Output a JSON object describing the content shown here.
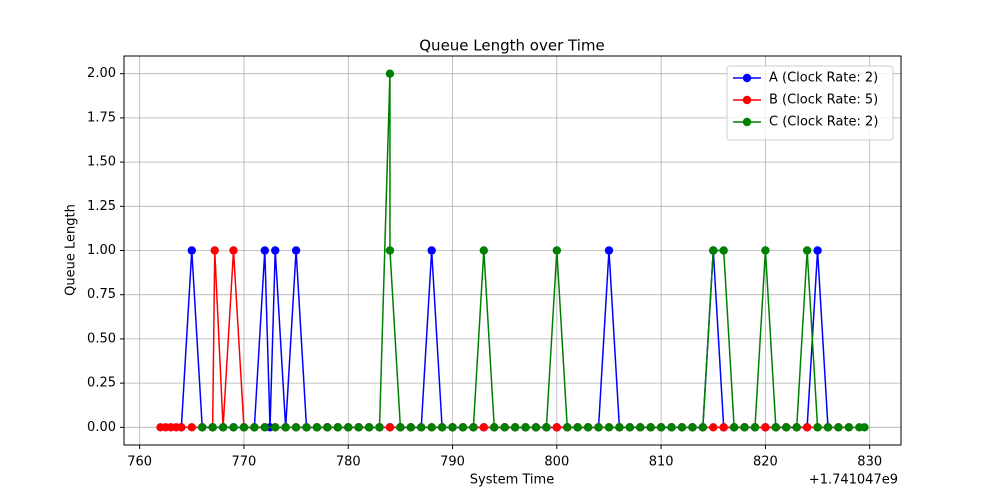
{
  "chart_data": {
    "type": "line",
    "title": "Queue Length over Time",
    "x_label": "System Time",
    "y_label": "Queue Length",
    "x_offset_label": "+1.741047e9",
    "xlim": [
      758.5,
      833
    ],
    "ylim": [
      -0.1,
      2.1
    ],
    "xticks": [
      760,
      770,
      780,
      790,
      800,
      810,
      820,
      830
    ],
    "yticks": [
      {
        "value": 0,
        "label": "0.00"
      },
      {
        "value": 0.25,
        "label": "0.25"
      },
      {
        "value": 0.5,
        "label": "0.50"
      },
      {
        "value": 0.75,
        "label": "0.75"
      },
      {
        "value": 1,
        "label": "1.00"
      },
      {
        "value": 1.25,
        "label": "1.25"
      },
      {
        "value": 1.5,
        "label": "1.50"
      },
      {
        "value": 1.75,
        "label": "1.75"
      },
      {
        "value": 2,
        "label": "2.00"
      }
    ],
    "grid": true,
    "legend": "upper right",
    "series": [
      {
        "name": "A (Clock Rate: 2)",
        "color": "#0000ff",
        "x": [
          764,
          765,
          766,
          767,
          768,
          769,
          770,
          771,
          772,
          772.5,
          773,
          774,
          775,
          776,
          777,
          778,
          779,
          780,
          781,
          782,
          783,
          784,
          785,
          786,
          787,
          788,
          789,
          790,
          791,
          792,
          793,
          794,
          795,
          796,
          797,
          798,
          799,
          800,
          801,
          802,
          803,
          804,
          805,
          806,
          807,
          808,
          809,
          810,
          811,
          812,
          813,
          814,
          815,
          816,
          817,
          818,
          819,
          820,
          821,
          822,
          823,
          824,
          825,
          826
        ],
        "values": [
          0,
          1,
          0,
          0,
          0,
          0,
          0,
          0,
          1,
          0,
          1,
          0,
          1,
          0,
          0,
          0,
          0,
          0,
          0,
          0,
          0,
          0,
          0,
          0,
          0,
          1,
          0,
          0,
          0,
          0,
          0,
          0,
          0,
          0,
          0,
          0,
          0,
          0,
          0,
          0,
          0,
          0,
          1,
          0,
          0,
          0,
          0,
          0,
          0,
          0,
          0,
          0,
          1,
          0,
          0,
          0,
          0,
          0,
          0,
          0,
          0,
          0,
          1,
          0
        ]
      },
      {
        "name": "B (Clock Rate: 5)",
        "color": "#ff0000",
        "x": [
          762,
          762.5,
          763,
          763.5,
          764,
          765,
          766,
          767,
          767.2,
          768,
          769,
          770,
          771,
          772,
          773,
          774,
          775,
          776,
          777,
          778,
          779,
          780,
          781,
          782,
          783,
          784,
          785,
          786,
          787,
          788,
          789,
          790,
          791,
          792,
          793,
          794,
          795,
          796,
          797,
          798,
          799,
          800,
          801,
          802,
          803,
          804,
          805,
          806,
          807,
          808,
          809,
          810,
          811,
          812,
          813,
          814,
          815,
          816,
          817,
          818,
          819,
          820,
          821,
          822,
          823,
          824,
          825,
          826,
          827,
          828
        ],
        "values": [
          0,
          0,
          0,
          0,
          0,
          0,
          0,
          0,
          1,
          0,
          1,
          0,
          0,
          0,
          0,
          0,
          0,
          0,
          0,
          0,
          0,
          0,
          0,
          0,
          0,
          0,
          0,
          0,
          0,
          0,
          0,
          0,
          0,
          0,
          0,
          0,
          0,
          0,
          0,
          0,
          0,
          0,
          0,
          0,
          0,
          0,
          0,
          0,
          0,
          0,
          0,
          0,
          0,
          0,
          0,
          0,
          0,
          0,
          0,
          0,
          0,
          0,
          0,
          0,
          0,
          0,
          0,
          0,
          0,
          0
        ]
      },
      {
        "name": "C (Clock Rate: 2)",
        "color": "#008000",
        "x": [
          766,
          767,
          768,
          769,
          770,
          771,
          772,
          773,
          774,
          775,
          776,
          777,
          778,
          779,
          780,
          781,
          782,
          783,
          784,
          784,
          785,
          786,
          787,
          788,
          789,
          790,
          791,
          792,
          793,
          794,
          795,
          796,
          797,
          798,
          799,
          800,
          801,
          802,
          803,
          804,
          805,
          806,
          807,
          808,
          809,
          810,
          811,
          812,
          813,
          814,
          815,
          816,
          817,
          818,
          819,
          820,
          821,
          822,
          823,
          824,
          825,
          826,
          827,
          828,
          829,
          829.5
        ],
        "values": [
          0,
          0,
          0,
          0,
          0,
          0,
          0,
          0,
          0,
          0,
          0,
          0,
          0,
          0,
          0,
          0,
          0,
          0,
          2,
          1,
          0,
          0,
          0,
          0,
          0,
          0,
          0,
          0,
          1,
          0,
          0,
          0,
          0,
          0,
          0,
          1,
          0,
          0,
          0,
          0,
          0,
          0,
          0,
          0,
          0,
          0,
          0,
          0,
          0,
          0,
          1,
          1,
          0,
          0,
          0,
          1,
          0,
          0,
          0,
          1,
          0,
          0,
          0,
          0,
          0,
          0
        ]
      }
    ]
  }
}
